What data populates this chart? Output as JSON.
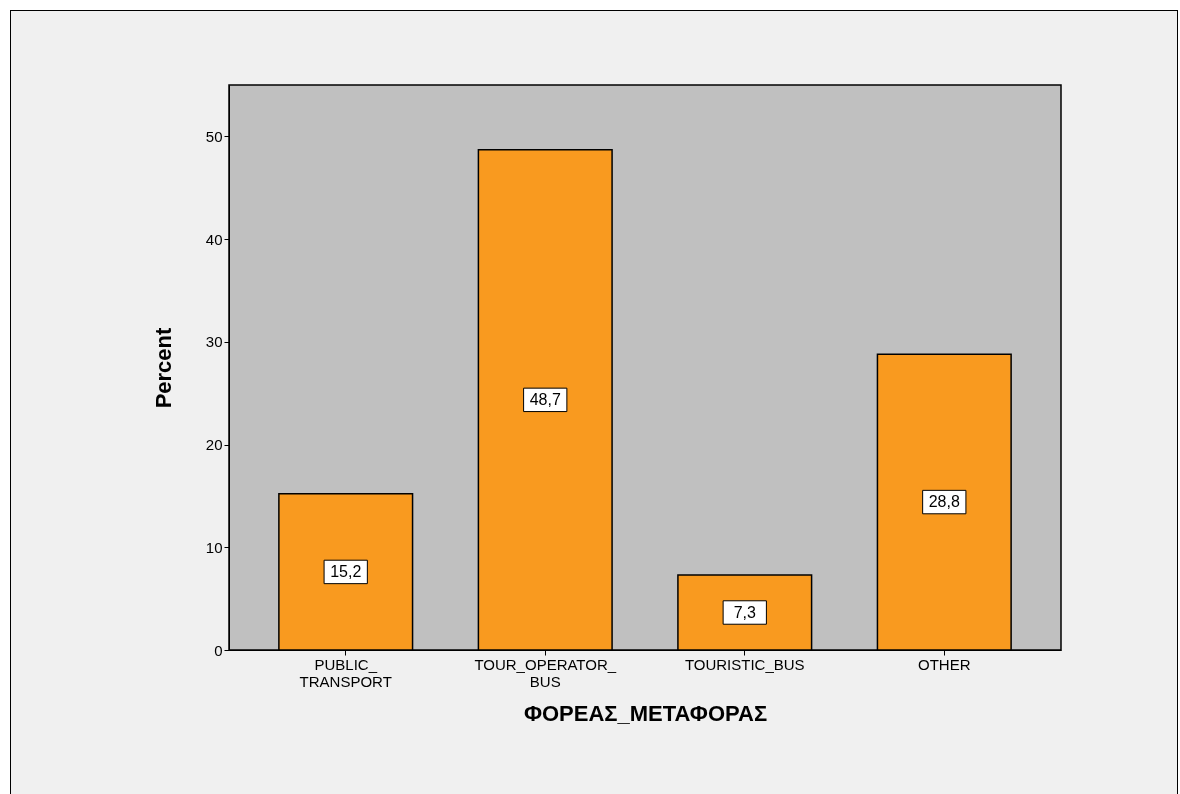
{
  "chart_data": {
    "type": "bar",
    "xlabel": "ΦΟΡΕΑΣ_ΜΕΤΑΦΟΡΑΣ",
    "ylabel": "Percent",
    "categories": [
      "PUBLIC_ TRANSPORT",
      "TOUR_OPERATOR_ BUS",
      "TOURISTIC_BUS",
      "OTHER"
    ],
    "values": [
      15.2,
      48.7,
      7.3,
      28.8
    ],
    "value_labels": [
      "15,2",
      "48,7",
      "7,3",
      "28,8"
    ],
    "color": "#f99a1f",
    "ylim": [
      0,
      55
    ],
    "yticks": [
      0,
      10,
      20,
      30,
      40,
      50
    ],
    "grid": false,
    "legend": false
  }
}
